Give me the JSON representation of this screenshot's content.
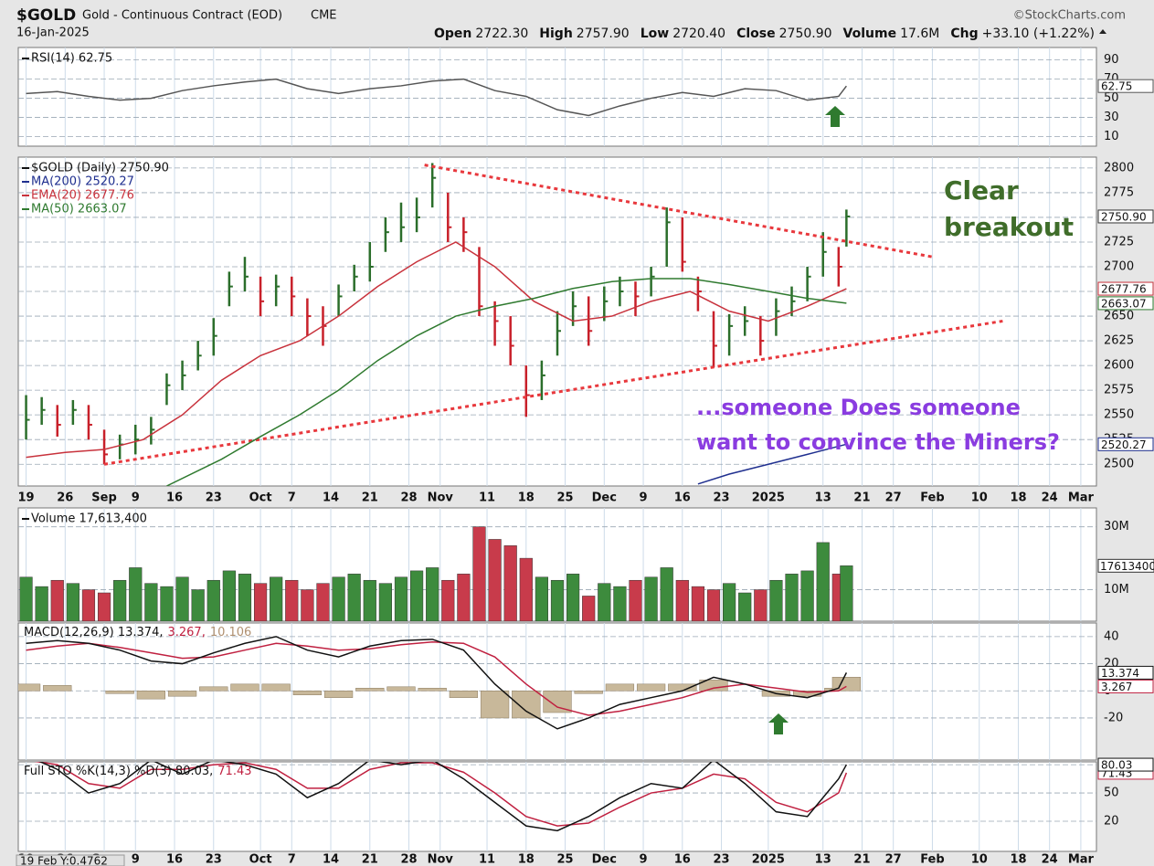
{
  "header": {
    "symbol": "$GOLD",
    "name": "Gold - Continuous Contract (EOD)",
    "exchange": "CME",
    "source": "©StockCharts.com",
    "date": "16-Jan-2025",
    "quote": [
      {
        "label": "Open",
        "value": "2722.30"
      },
      {
        "label": "High",
        "value": "2757.90"
      },
      {
        "label": "Low",
        "value": "2720.40"
      },
      {
        "label": "Close",
        "value": "2750.90"
      },
      {
        "label": "Volume",
        "value": "17.6M"
      },
      {
        "label": "Chg",
        "value": "+33.10 (+1.22%)"
      }
    ],
    "readout": "19 Feb Y:0.4762"
  },
  "chart_data": [
    {
      "type": "line",
      "ylim": [
        0,
        103
      ],
      "yticks": [
        10,
        30,
        50,
        70,
        90
      ],
      "legend": [
        {
          "text": "RSI(14) 62.75",
          "color": "#111111"
        }
      ],
      "series": [
        {
          "x": [
            0,
            4,
            8,
            12,
            16,
            20,
            24,
            28,
            32,
            36,
            40,
            44,
            48,
            52,
            56,
            60,
            64,
            68,
            72,
            76,
            80,
            84,
            88,
            92,
            96,
            100,
            104,
            105
          ],
          "values": [
            55,
            57,
            52,
            48,
            50,
            58,
            63,
            67,
            70,
            60,
            55,
            60,
            63,
            68,
            70,
            58,
            52,
            38,
            32,
            42,
            50,
            56,
            52,
            60,
            58,
            48,
            52,
            62.75
          ],
          "color": "#555555",
          "last_label": "62.75"
        }
      ]
    },
    {
      "type": "ohlc",
      "ylim": [
        2478,
        2811
      ],
      "yticks": [
        2500,
        2525,
        2550,
        2575,
        2600,
        2625,
        2650,
        2675,
        2700,
        2725,
        2750,
        2775,
        2800
      ],
      "xlim": [
        -1,
        137
      ],
      "xticks": [
        {
          "value": 0,
          "label": "19"
        },
        {
          "value": 5,
          "label": "26"
        },
        {
          "value": 10,
          "label": "Sep"
        },
        {
          "value": 14,
          "label": "9"
        },
        {
          "value": 19,
          "label": "16"
        },
        {
          "value": 24,
          "label": "23"
        },
        {
          "value": 30,
          "label": "Oct"
        },
        {
          "value": 34,
          "label": "7"
        },
        {
          "value": 39,
          "label": "14"
        },
        {
          "value": 44,
          "label": "21"
        },
        {
          "value": 49,
          "label": "28"
        },
        {
          "value": 53,
          "label": "Nov"
        },
        {
          "value": 59,
          "label": "11"
        },
        {
          "value": 64,
          "label": "18"
        },
        {
          "value": 69,
          "label": "25"
        },
        {
          "value": 74,
          "label": "Dec"
        },
        {
          "value": 79,
          "label": "9"
        },
        {
          "value": 84,
          "label": "16"
        },
        {
          "value": 89,
          "label": "23"
        },
        {
          "value": 95,
          "label": "2025"
        },
        {
          "value": 102,
          "label": "13"
        },
        {
          "value": 107,
          "label": "21"
        },
        {
          "value": 111,
          "label": "27"
        },
        {
          "value": 116,
          "label": "Feb"
        },
        {
          "value": 122,
          "label": "10"
        },
        {
          "value": 127,
          "label": "18"
        },
        {
          "value": 131,
          "label": "24"
        },
        {
          "value": 135,
          "label": "Mar"
        }
      ],
      "up_color": "#2b6e2b",
      "down_color": "#c8202a",
      "x": [
        0,
        2,
        4,
        6,
        8,
        10,
        12,
        14,
        16,
        18,
        20,
        22,
        24,
        26,
        28,
        30,
        32,
        34,
        36,
        38,
        40,
        42,
        44,
        46,
        48,
        50,
        52,
        54,
        56,
        58,
        60,
        62,
        64,
        66,
        68,
        70,
        72,
        74,
        76,
        78,
        80,
        82,
        84,
        86,
        88,
        90,
        92,
        94,
        96,
        98,
        100,
        102,
        104,
        105
      ],
      "high": [
        2570,
        2568,
        2560,
        2565,
        2560,
        2535,
        2530,
        2540,
        2548,
        2592,
        2605,
        2625,
        2648,
        2695,
        2710,
        2690,
        2692,
        2690,
        2668,
        2660,
        2682,
        2702,
        2725,
        2750,
        2765,
        2770,
        2805,
        2775,
        2750,
        2720,
        2665,
        2650,
        2600,
        2605,
        2655,
        2675,
        2670,
        2680,
        2690,
        2685,
        2700,
        2760,
        2750,
        2690,
        2655,
        2652,
        2660,
        2650,
        2668,
        2680,
        2700,
        2735,
        2720,
        2757.9
      ],
      "low": [
        2525,
        2540,
        2528,
        2540,
        2525,
        2500,
        2505,
        2510,
        2520,
        2560,
        2575,
        2595,
        2610,
        2660,
        2675,
        2650,
        2660,
        2650,
        2630,
        2620,
        2650,
        2675,
        2685,
        2715,
        2725,
        2735,
        2760,
        2725,
        2715,
        2650,
        2620,
        2600,
        2548,
        2565,
        2610,
        2640,
        2620,
        2645,
        2660,
        2650,
        2670,
        2700,
        2695,
        2655,
        2598,
        2610,
        2630,
        2610,
        2630,
        2650,
        2665,
        2690,
        2680,
        2720.4
      ],
      "close": [
        2545,
        2555,
        2540,
        2555,
        2540,
        2510,
        2520,
        2525,
        2535,
        2580,
        2590,
        2610,
        2630,
        2680,
        2690,
        2665,
        2680,
        2670,
        2650,
        2640,
        2670,
        2690,
        2700,
        2735,
        2740,
        2750,
        2790,
        2740,
        2735,
        2660,
        2645,
        2620,
        2570,
        2590,
        2635,
        2660,
        2635,
        2665,
        2675,
        2670,
        2690,
        2745,
        2705,
        2675,
        2620,
        2640,
        2645,
        2625,
        2655,
        2665,
        2690,
        2715,
        2700,
        2750.9
      ],
      "close_label": "2750.90",
      "legend": [
        {
          "text": "$GOLD (Daily) 2750.90",
          "color": "#111111"
        },
        {
          "text": "MA(200) 2520.27",
          "color": "#1f2f8f"
        },
        {
          "text": "EMA(20) 2677.76",
          "color": "#c8323c"
        },
        {
          "text": "MA(50) 2663.07",
          "color": "#2f7a2f"
        }
      ],
      "series": [
        {
          "x": [
            86,
            90,
            95,
            100,
            105
          ],
          "values": [
            2480,
            2490,
            2500,
            2510,
            2520.27
          ],
          "color": "#1f2f8f",
          "last_label": "2520.27"
        },
        {
          "x": [
            0,
            5,
            10,
            15,
            20,
            25,
            30,
            35,
            40,
            45,
            50,
            55,
            60,
            65,
            70,
            75,
            80,
            85,
            90,
            95,
            100,
            105
          ],
          "values": [
            2507,
            2512,
            2515,
            2525,
            2550,
            2585,
            2610,
            2625,
            2650,
            2680,
            2705,
            2725,
            2700,
            2665,
            2645,
            2650,
            2665,
            2675,
            2655,
            2645,
            2660,
            2677.76
          ],
          "color": "#c8323c",
          "last_label": "2677.76"
        },
        {
          "x": [
            18,
            25,
            30,
            35,
            40,
            45,
            50,
            55,
            60,
            65,
            70,
            75,
            80,
            85,
            90,
            95,
            100,
            105
          ],
          "values": [
            2478,
            2505,
            2528,
            2550,
            2575,
            2605,
            2630,
            2650,
            2660,
            2668,
            2678,
            2685,
            2688,
            2688,
            2682,
            2675,
            2668,
            2663.07
          ],
          "color": "#2f7a2f",
          "last_label": "2663.07"
        }
      ],
      "trendlines": [
        {
          "x": [
            51,
            116
          ],
          "values": [
            2803,
            2710
          ]
        },
        {
          "x": [
            10,
            125
          ],
          "values": [
            2500,
            2645
          ]
        }
      ],
      "trendline_color": "#e8383d",
      "annotations": [
        {
          "lines": [
            "Clear",
            "breakout"
          ],
          "color": "#3f6d2a"
        },
        {
          "lines": [
            "...someone Does someone",
            "want to convince the Miners?"
          ],
          "color": "#8a3ce0"
        }
      ]
    },
    {
      "type": "bar",
      "ylim": [
        0,
        36000000
      ],
      "yticks": [
        {
          "value": 10000000,
          "label": "10M"
        },
        {
          "value": 30000000,
          "label": "30M"
        }
      ],
      "legend": [
        {
          "text": "Volume 17,613,400",
          "color": "#111111"
        }
      ],
      "axis_label": "17613400",
      "x": [
        0,
        2,
        4,
        6,
        8,
        10,
        12,
        14,
        16,
        18,
        20,
        22,
        24,
        26,
        28,
        30,
        32,
        34,
        36,
        38,
        40,
        42,
        44,
        46,
        48,
        50,
        52,
        54,
        56,
        58,
        60,
        62,
        64,
        66,
        68,
        70,
        72,
        74,
        76,
        78,
        80,
        82,
        84,
        86,
        88,
        90,
        92,
        94,
        96,
        98,
        100,
        102,
        104,
        105
      ],
      "values": [
        14000000,
        11000000,
        13000000,
        12000000,
        10000000,
        9000000,
        13000000,
        17000000,
        12000000,
        11000000,
        14000000,
        10000000,
        13000000,
        16000000,
        15000000,
        12000000,
        14000000,
        13000000,
        10000000,
        12000000,
        14000000,
        15000000,
        13000000,
        12000000,
        14000000,
        16000000,
        17000000,
        13000000,
        15000000,
        30000000,
        26000000,
        24000000,
        20000000,
        14000000,
        13000000,
        15000000,
        8000000,
        12000000,
        11000000,
        13000000,
        14000000,
        17000000,
        13000000,
        11000000,
        10000000,
        12000000,
        9000000,
        10000000,
        13000000,
        15000000,
        16000000,
        25000000,
        15000000,
        17613400
      ],
      "up_color": "#3d8b3d",
      "down_color": "#c83b4b"
    },
    {
      "type": "line",
      "ylim": [
        -51,
        50
      ],
      "yticks": [
        -20,
        0,
        20,
        40
      ],
      "legend_inline": true,
      "legend": [
        {
          "text": "MACD(12,26,9) 13.374,",
          "color": "#111111"
        },
        {
          "text": "3.267,",
          "color": "#c02040"
        },
        {
          "text": "10.106",
          "color": "#b09070"
        }
      ],
      "series": [
        {
          "type": "bar",
          "x": [
            0,
            4,
            8,
            12,
            16,
            20,
            24,
            28,
            32,
            36,
            40,
            44,
            48,
            52,
            56,
            60,
            64,
            68,
            72,
            76,
            80,
            84,
            88,
            92,
            96,
            100,
            104,
            105
          ],
          "values": [
            5,
            4,
            0,
            -2,
            -6,
            -4,
            3,
            5,
            5,
            -3,
            -5,
            2,
            3,
            2,
            -5,
            -20,
            -20,
            -16,
            -2,
            5,
            5,
            5,
            8,
            0,
            -4,
            -4,
            2,
            10.106
          ],
          "color": "#c8b89a"
        },
        {
          "x": [
            0,
            4,
            8,
            12,
            16,
            20,
            24,
            28,
            32,
            36,
            40,
            44,
            48,
            52,
            56,
            60,
            64,
            68,
            72,
            76,
            80,
            84,
            88,
            92,
            96,
            100,
            104,
            105
          ],
          "values": [
            30,
            33,
            35,
            32,
            28,
            24,
            25,
            30,
            35,
            33,
            30,
            31,
            34,
            36,
            35,
            25,
            5,
            -12,
            -18,
            -15,
            -10,
            -5,
            2,
            5,
            2,
            -1,
            0,
            3.267
          ],
          "color": "#c02040",
          "last_label": "3.267"
        },
        {
          "x": [
            0,
            4,
            8,
            12,
            16,
            20,
            24,
            28,
            32,
            36,
            40,
            44,
            48,
            52,
            56,
            60,
            64,
            68,
            72,
            76,
            80,
            84,
            88,
            92,
            96,
            100,
            104,
            105
          ],
          "values": [
            35,
            37,
            35,
            30,
            22,
            20,
            28,
            35,
            40,
            30,
            25,
            33,
            37,
            38,
            30,
            5,
            -15,
            -28,
            -20,
            -10,
            -5,
            0,
            10,
            5,
            -2,
            -5,
            2,
            13.374
          ],
          "color": "#111111",
          "last_label": "13.374"
        }
      ]
    },
    {
      "type": "line",
      "ylim": [
        -12,
        83
      ],
      "yticks": [
        20,
        50,
        80
      ],
      "legend_inline": true,
      "legend": [
        {
          "text": "Full STO %K(14,3) %D(3) 80.03,",
          "color": "#111111"
        },
        {
          "text": "71.43",
          "color": "#c02040"
        }
      ],
      "series": [
        {
          "x": [
            0,
            4,
            8,
            12,
            16,
            20,
            24,
            28,
            32,
            36,
            40,
            44,
            48,
            52,
            56,
            60,
            64,
            68,
            72,
            76,
            80,
            84,
            88,
            92,
            96,
            100,
            104,
            105
          ],
          "values": [
            85,
            80,
            60,
            55,
            75,
            75,
            80,
            82,
            75,
            55,
            55,
            75,
            82,
            82,
            72,
            50,
            25,
            15,
            18,
            35,
            50,
            55,
            70,
            65,
            40,
            30,
            50,
            71.43
          ],
          "color": "#c02040",
          "last_label": "71.43"
        },
        {
          "x": [
            0,
            4,
            8,
            12,
            16,
            20,
            24,
            28,
            32,
            36,
            40,
            44,
            48,
            52,
            56,
            60,
            64,
            68,
            72,
            76,
            80,
            84,
            88,
            92,
            96,
            100,
            104,
            105
          ],
          "values": [
            90,
            75,
            50,
            60,
            85,
            70,
            85,
            80,
            70,
            45,
            60,
            85,
            80,
            85,
            65,
            40,
            15,
            10,
            25,
            45,
            60,
            55,
            85,
            60,
            30,
            25,
            65,
            80.03
          ],
          "color": "#111111",
          "last_label": "80.03"
        }
      ]
    }
  ]
}
